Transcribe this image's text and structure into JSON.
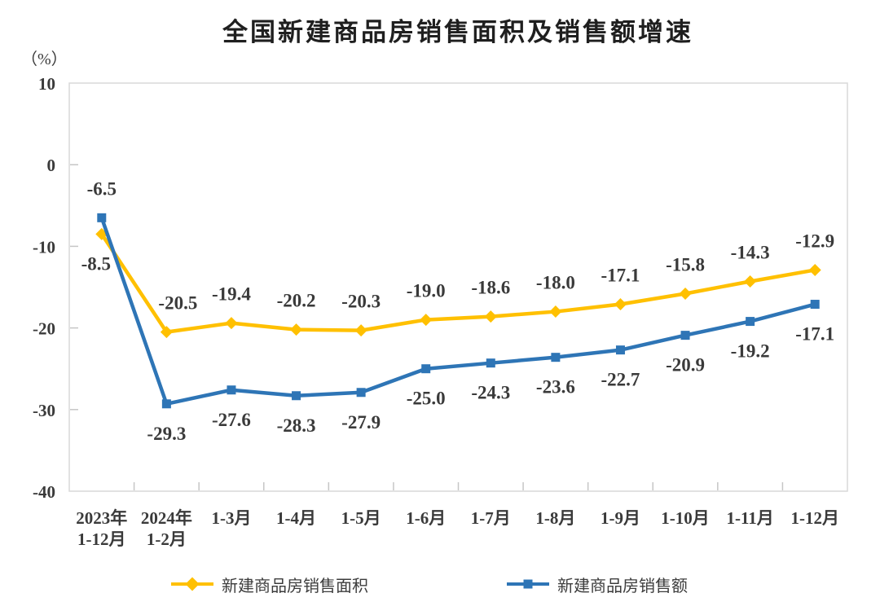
{
  "chart_data": {
    "type": "line",
    "title": "全国新建商品房销售面积及销售额增速",
    "ylabel": "（%）",
    "xlabel": "",
    "ylim": [
      -40,
      10
    ],
    "yticks": [
      10,
      0,
      -10,
      -20,
      -30,
      -40
    ],
    "grid": false,
    "legend_position": "bottom",
    "categories": [
      "2023年|1-12月",
      "2024年|1-2月",
      "1-3月",
      "1-4月",
      "1-5月",
      "1-6月",
      "1-7月",
      "1-8月",
      "1-9月",
      "1-10月",
      "1-11月",
      "1-12月"
    ],
    "series": [
      {
        "name": "新建商品房销售面积",
        "color": "#FFC000",
        "marker": "diamond",
        "values": [
          -8.5,
          -20.5,
          -19.4,
          -20.2,
          -20.3,
          -19.0,
          -18.6,
          -18.0,
          -17.1,
          -15.8,
          -14.3,
          -12.9
        ],
        "label_sides": [
          "below",
          "above",
          "above",
          "above",
          "above",
          "above",
          "above",
          "above",
          "above",
          "above",
          "above",
          "above"
        ],
        "label_dx": {
          "0": -7,
          "1": 14
        }
      },
      {
        "name": "新建商品房销售额",
        "color": "#2E75B6",
        "marker": "square",
        "values": [
          -6.5,
          -29.3,
          -27.6,
          -28.3,
          -27.9,
          -25.0,
          -24.3,
          -23.6,
          -22.7,
          -20.9,
          -19.2,
          -17.1
        ],
        "label_sides": [
          "above",
          "below",
          "below",
          "below",
          "below",
          "below",
          "below",
          "below",
          "below",
          "below",
          "below",
          "below"
        ],
        "label_dx": {}
      }
    ]
  }
}
